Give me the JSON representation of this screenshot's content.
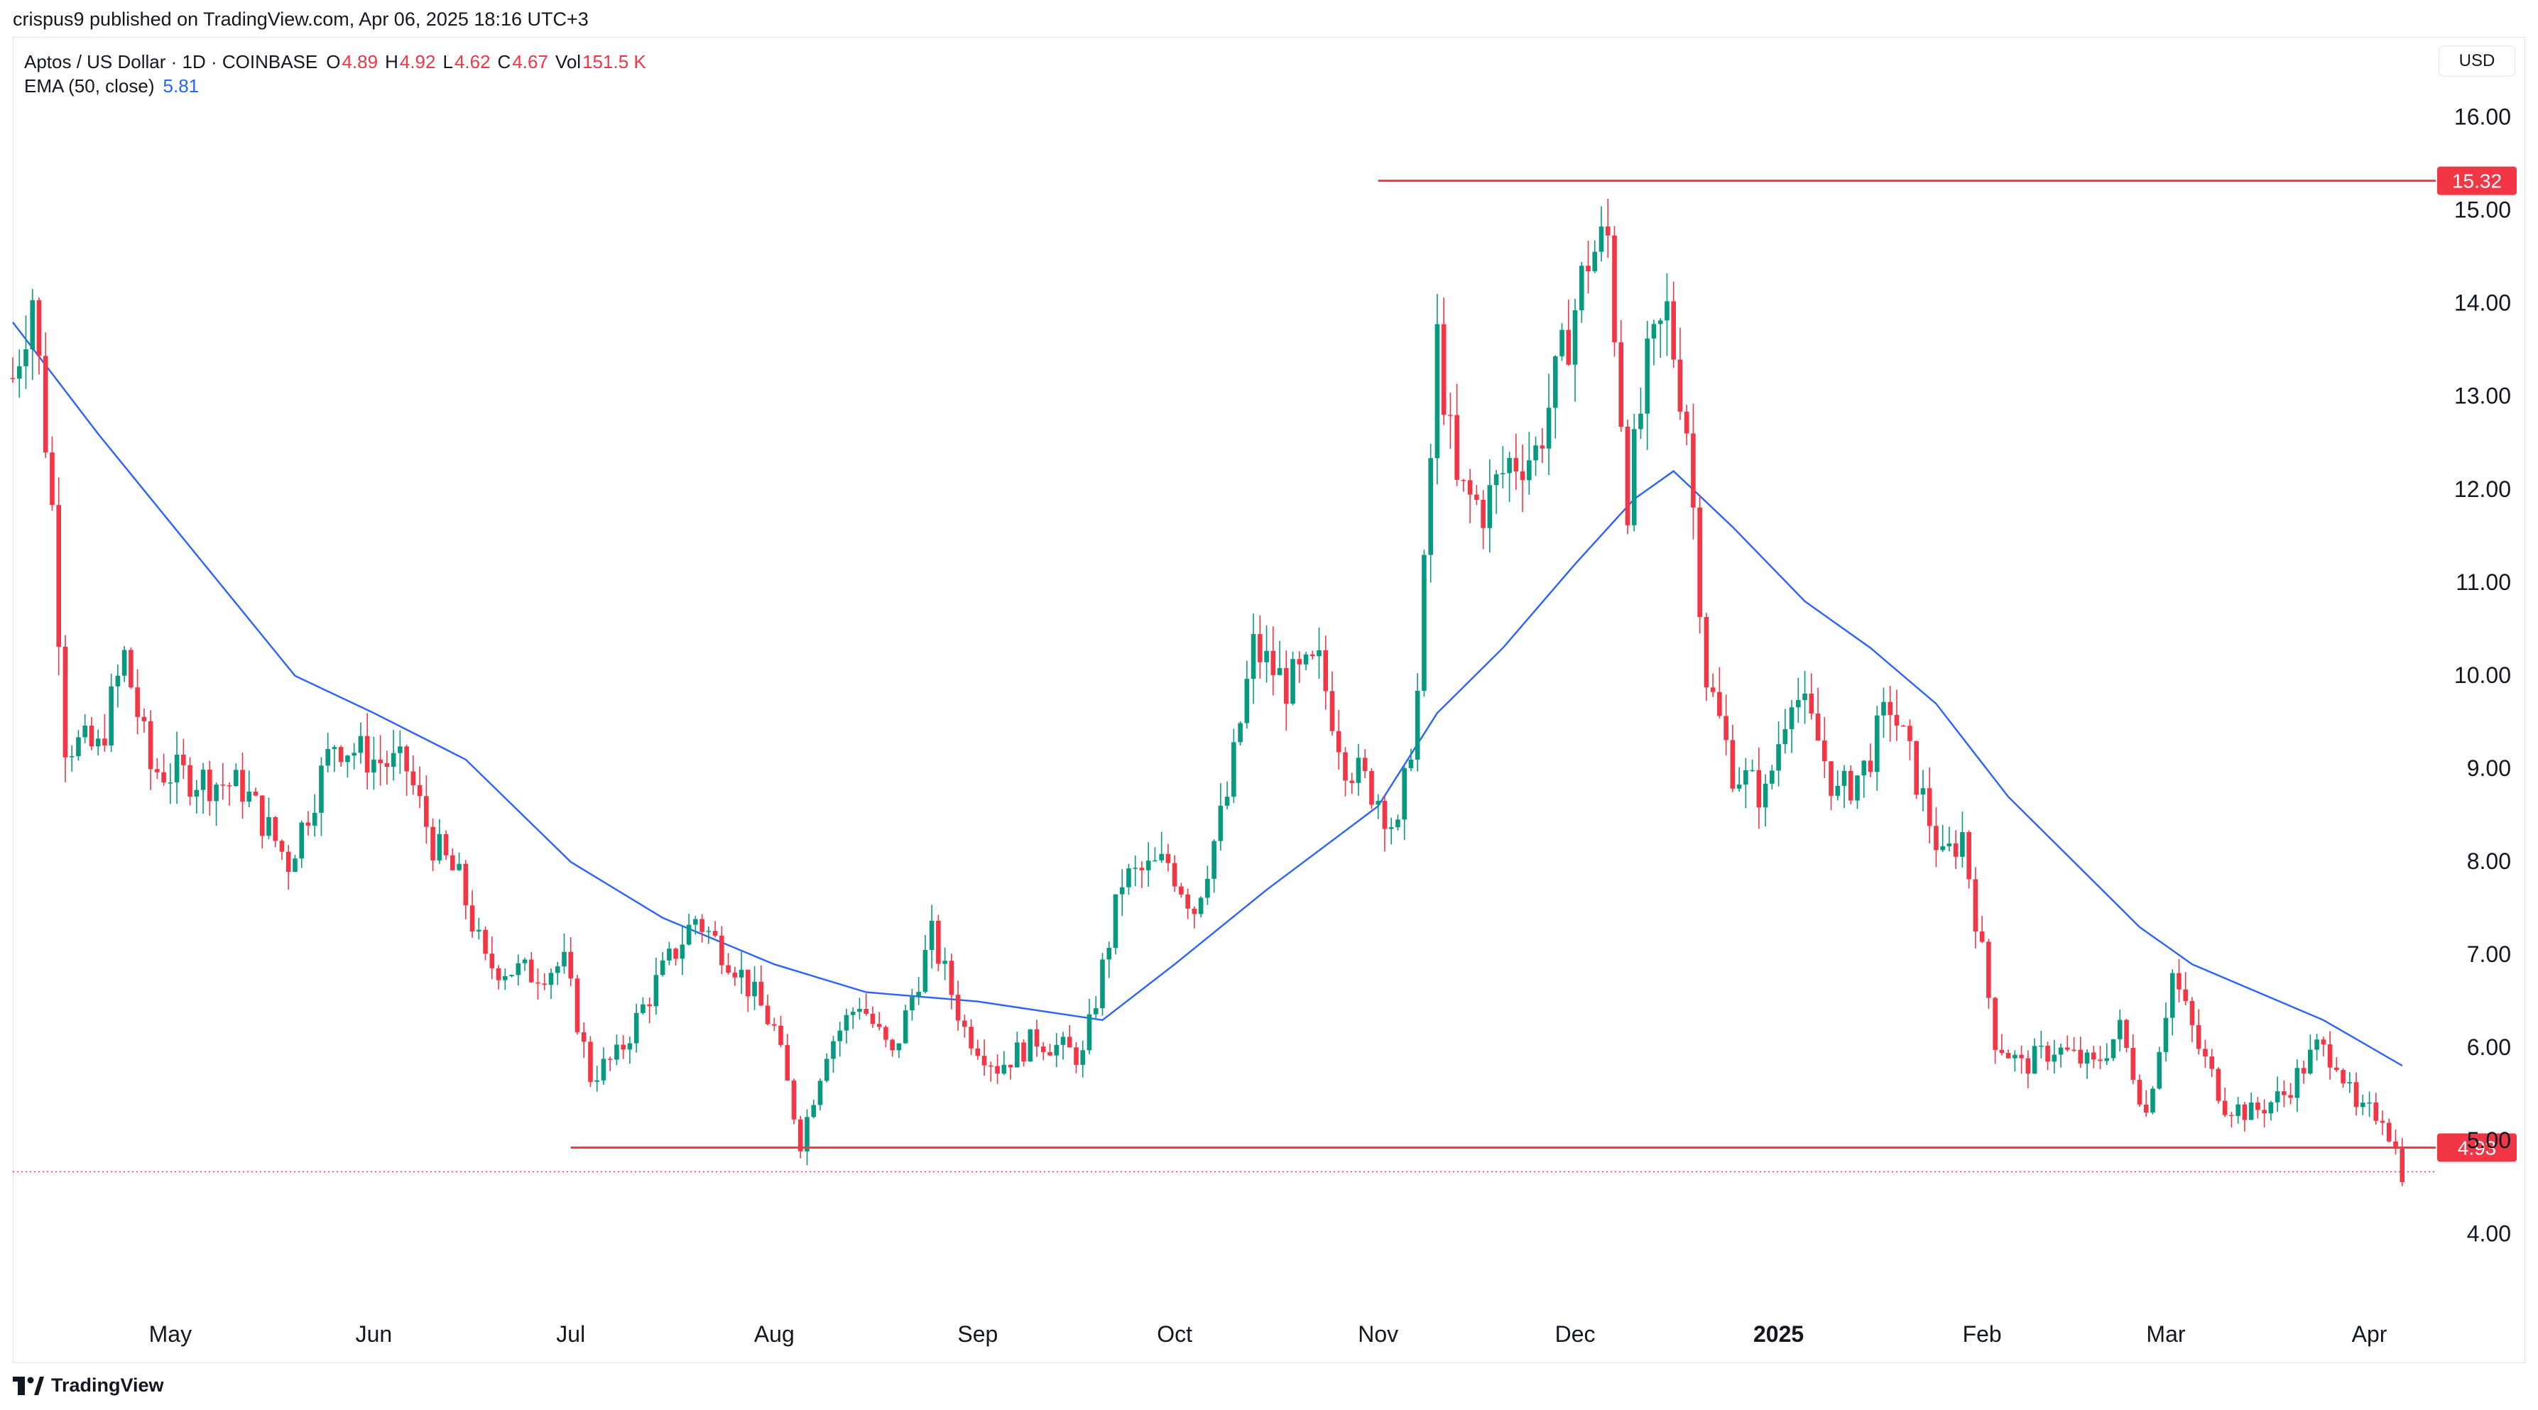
{
  "header": {
    "publisher_text": "crispus9 published on TradingView.com, Apr 06, 2025 18:16 UTC+3"
  },
  "legend": {
    "symbol": "Aptos / US Dollar · 1D · COINBASE",
    "ohlc": [
      {
        "label": "O",
        "value": "4.89"
      },
      {
        "label": "H",
        "value": "4.92"
      },
      {
        "label": "L",
        "value": "4.62"
      },
      {
        "label": "C",
        "value": "4.67"
      },
      {
        "label": "Vol",
        "value": "151.5 K"
      }
    ],
    "ema_label": "EMA (50, close)",
    "ema_value": "5.81"
  },
  "currency": "USD",
  "footer": {
    "brand": "TradingView"
  },
  "colors": {
    "up": "#089981",
    "down": "#f23645",
    "ema": "#2962ff",
    "level": "#f23645",
    "axis_text": "#131722",
    "grid": "#ffffff"
  },
  "chart_data": {
    "type": "candlestick",
    "title": "Aptos / US Dollar · 1D · COINBASE",
    "y_axis": {
      "ticks": [
        "4.00",
        "5.00",
        "6.00",
        "7.00",
        "8.00",
        "9.00",
        "10.00",
        "11.00",
        "12.00",
        "13.00",
        "14.00",
        "15.00",
        "16.00"
      ],
      "range": [
        3.3,
        16.5
      ]
    },
    "x_axis": {
      "ticks": [
        {
          "label": "May",
          "bold": false
        },
        {
          "label": "Jun",
          "bold": false
        },
        {
          "label": "Jul",
          "bold": false
        },
        {
          "label": "Aug",
          "bold": false
        },
        {
          "label": "Sep",
          "bold": false
        },
        {
          "label": "Oct",
          "bold": false
        },
        {
          "label": "Nov",
          "bold": false
        },
        {
          "label": "Dec",
          "bold": false
        },
        {
          "label": "2025",
          "bold": true
        },
        {
          "label": "Feb",
          "bold": false
        },
        {
          "label": "Mar",
          "bold": false
        },
        {
          "label": "Apr",
          "bold": false
        }
      ],
      "range": [
        "2024-04-07",
        "2025-04-07"
      ]
    },
    "horizontal_levels": [
      {
        "value": 15.32,
        "label": "15.32",
        "from": "2024-11-01"
      },
      {
        "value": 4.93,
        "label": "4.93",
        "from": "2024-07-01"
      }
    ],
    "last_price": 4.67,
    "ema_period": 50,
    "ema_last": 5.81,
    "price_path": [
      [
        "2024-04-07",
        13.2
      ],
      [
        "2024-04-10",
        14.1
      ],
      [
        "2024-04-13",
        11.8
      ],
      [
        "2024-04-15",
        9.3
      ],
      [
        "2024-04-20",
        9.2
      ],
      [
        "2024-04-24",
        10.2
      ],
      [
        "2024-04-28",
        9.0
      ],
      [
        "2024-05-05",
        8.9
      ],
      [
        "2024-05-12",
        8.8
      ],
      [
        "2024-05-19",
        8.0
      ],
      [
        "2024-05-26",
        9.3
      ],
      [
        "2024-06-01",
        9.1
      ],
      [
        "2024-06-06",
        9.0
      ],
      [
        "2024-06-10",
        8.2
      ],
      [
        "2024-06-14",
        7.8
      ],
      [
        "2024-06-18",
        6.9
      ],
      [
        "2024-06-25",
        6.8
      ],
      [
        "2024-06-30",
        6.9
      ],
      [
        "2024-07-04",
        5.7
      ],
      [
        "2024-07-08",
        5.9
      ],
      [
        "2024-07-14",
        6.7
      ],
      [
        "2024-07-20",
        7.4
      ],
      [
        "2024-07-26",
        6.9
      ],
      [
        "2024-08-01",
        6.2
      ],
      [
        "2024-08-05",
        5.0
      ],
      [
        "2024-08-09",
        6.0
      ],
      [
        "2024-08-14",
        6.5
      ],
      [
        "2024-08-19",
        5.9
      ],
      [
        "2024-08-25",
        7.2
      ],
      [
        "2024-08-30",
        6.2
      ],
      [
        "2024-09-04",
        5.8
      ],
      [
        "2024-09-10",
        6.1
      ],
      [
        "2024-09-17",
        5.9
      ],
      [
        "2024-09-23",
        7.8
      ],
      [
        "2024-09-30",
        8.0
      ],
      [
        "2024-10-04",
        7.5
      ],
      [
        "2024-10-09",
        8.7
      ],
      [
        "2024-10-13",
        10.3
      ],
      [
        "2024-10-18",
        9.9
      ],
      [
        "2024-10-23",
        10.1
      ],
      [
        "2024-10-27",
        9.1
      ],
      [
        "2024-11-01",
        8.7
      ],
      [
        "2024-11-04",
        8.3
      ],
      [
        "2024-11-07",
        9.8
      ],
      [
        "2024-11-10",
        13.6
      ],
      [
        "2024-11-13",
        12.0
      ],
      [
        "2024-11-17",
        11.8
      ],
      [
        "2024-11-21",
        12.3
      ],
      [
        "2024-11-25",
        12.4
      ],
      [
        "2024-11-29",
        13.4
      ],
      [
        "2024-12-03",
        14.5
      ],
      [
        "2024-12-06",
        14.7
      ],
      [
        "2024-12-09",
        11.9
      ],
      [
        "2024-12-12",
        13.3
      ],
      [
        "2024-12-15",
        13.9
      ],
      [
        "2024-12-18",
        12.7
      ],
      [
        "2024-12-21",
        10.0
      ],
      [
        "2024-12-25",
        9.0
      ],
      [
        "2024-12-30",
        8.7
      ],
      [
        "2025-01-03",
        9.9
      ],
      [
        "2025-01-07",
        9.3
      ],
      [
        "2025-01-10",
        8.7
      ],
      [
        "2025-01-14",
        9.0
      ],
      [
        "2025-01-18",
        9.7
      ],
      [
        "2025-01-22",
        8.9
      ],
      [
        "2025-01-26",
        8.0
      ],
      [
        "2025-01-29",
        8.3
      ],
      [
        "2025-02-01",
        7.0
      ],
      [
        "2025-02-03",
        6.1
      ],
      [
        "2025-02-07",
        5.8
      ],
      [
        "2025-02-12",
        6.0
      ],
      [
        "2025-02-18",
        5.8
      ],
      [
        "2025-02-22",
        6.2
      ],
      [
        "2025-02-26",
        5.3
      ],
      [
        "2025-03-02",
        6.8
      ],
      [
        "2025-03-06",
        6.0
      ],
      [
        "2025-03-10",
        5.4
      ],
      [
        "2025-03-14",
        5.3
      ],
      [
        "2025-03-19",
        5.5
      ],
      [
        "2025-03-24",
        6.0
      ],
      [
        "2025-03-27",
        5.9
      ],
      [
        "2025-03-30",
        5.3
      ],
      [
        "2025-04-03",
        5.3
      ],
      [
        "2025-04-05",
        4.89
      ],
      [
        "2025-04-06",
        4.67
      ]
    ],
    "ema_path": [
      [
        "2024-04-07",
        13.8
      ],
      [
        "2024-04-20",
        12.6
      ],
      [
        "2024-05-05",
        11.3
      ],
      [
        "2024-05-20",
        10.0
      ],
      [
        "2024-06-01",
        9.6
      ],
      [
        "2024-06-15",
        9.1
      ],
      [
        "2024-07-01",
        8.0
      ],
      [
        "2024-07-15",
        7.4
      ],
      [
        "2024-08-01",
        6.9
      ],
      [
        "2024-08-15",
        6.6
      ],
      [
        "2024-09-01",
        6.5
      ],
      [
        "2024-09-20",
        6.3
      ],
      [
        "2024-10-01",
        6.9
      ],
      [
        "2024-10-15",
        7.7
      ],
      [
        "2024-11-01",
        8.6
      ],
      [
        "2024-11-10",
        9.6
      ],
      [
        "2024-11-20",
        10.3
      ],
      [
        "2024-12-01",
        11.2
      ],
      [
        "2024-12-10",
        11.9
      ],
      [
        "2024-12-16",
        12.2
      ],
      [
        "2024-12-25",
        11.6
      ],
      [
        "2025-01-05",
        10.8
      ],
      [
        "2025-01-15",
        10.3
      ],
      [
        "2025-01-25",
        9.7
      ],
      [
        "2025-02-05",
        8.7
      ],
      [
        "2025-02-15",
        8.0
      ],
      [
        "2025-02-25",
        7.3
      ],
      [
        "2025-03-05",
        6.9
      ],
      [
        "2025-03-15",
        6.6
      ],
      [
        "2025-03-25",
        6.3
      ],
      [
        "2025-04-06",
        5.81
      ]
    ]
  }
}
